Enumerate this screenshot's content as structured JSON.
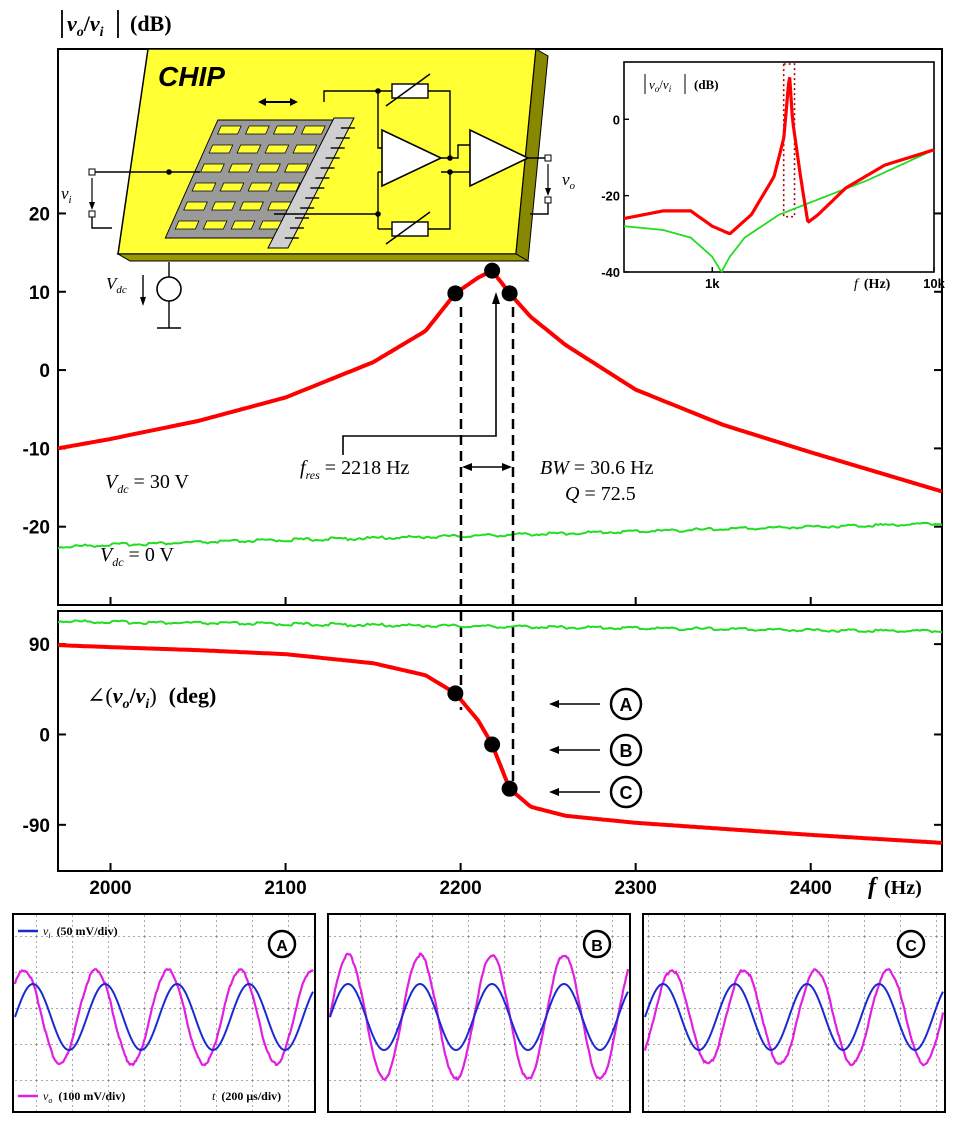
{
  "colors": {
    "driven": "#ff0000",
    "undriven": "#22dd22",
    "vi_trace": "#1a2ad0",
    "vo_trace": "#e020e0",
    "chip": "#ffff33",
    "text": "#000000"
  },
  "main": {
    "magnitude_label": {
      "v1": "v",
      "s1": "o",
      "slash": "/",
      "v2": "v",
      "s2": "i",
      "unit": "(dB)"
    },
    "phase_label": {
      "prefix": "∠(",
      "v1": "v",
      "s1": "o",
      "slash": "/",
      "v2": "v",
      "s2": "i",
      "close": ")",
      "unit": "(deg)"
    },
    "x_axis_label": {
      "f": "f",
      "unit": "(Hz)"
    },
    "vdc30": {
      "v": "V",
      "sub": "dc",
      "val": " = 30 V"
    },
    "vdc0": {
      "v": "V",
      "sub": "dc",
      "val": " = 0 V"
    },
    "fres": {
      "f": "f",
      "sub": "res",
      "val": " = 2218 Hz"
    },
    "bw": {
      "name": "BW",
      "val": " = 30.6 Hz"
    },
    "q": {
      "name": "Q",
      "val": " = 72.5"
    },
    "markers": [
      "A",
      "B",
      "C"
    ]
  },
  "chip": {
    "title": "CHIP",
    "vi": "v",
    "vi_sub": "i",
    "vo": "v",
    "vo_sub": "o",
    "vdc": "V",
    "vdc_sub": "dc"
  },
  "inset": {
    "label": {
      "v1": "v",
      "s1": "o",
      "slash": "/",
      "v2": "v",
      "s2": "i",
      "unit": "(dB)"
    },
    "x_axis_label": {
      "f": "f",
      "unit": "(Hz)"
    }
  },
  "scopes": {
    "vi_legend": {
      "v": "v",
      "sub": "i",
      "scale": "(50 mV/div)"
    },
    "vo_legend": {
      "v": "v",
      "sub": "o",
      "scale": "(100 mV/div)"
    },
    "time_legend": {
      "t": "t",
      "scale": "(200 μs/div)"
    },
    "labels": [
      "A",
      "B",
      "C"
    ]
  },
  "chart_data": [
    {
      "type": "line",
      "title": "",
      "ylabel": "|vo/vi| (dB)",
      "xlabel": "f (Hz)",
      "xlim": [
        1970,
        2475
      ],
      "ylim": [
        -30,
        41
      ],
      "yticks": [
        20,
        10,
        0,
        -10,
        -20
      ],
      "xticks": [
        2000,
        2100,
        2200,
        2300,
        2400
      ],
      "fres": 2218,
      "bandwidth": 30.6,
      "Q": 72.5,
      "series": [
        {
          "name": "Vdc = 30 V",
          "x": [
            1970,
            2000,
            2050,
            2100,
            2150,
            2180,
            2197,
            2210,
            2218,
            2228,
            2240,
            2260,
            2300,
            2350,
            2400,
            2475
          ],
          "y": [
            -10.0,
            -8.8,
            -6.5,
            -3.5,
            1.0,
            5.0,
            9.8,
            11.8,
            12.7,
            9.8,
            6.8,
            3.2,
            -2.5,
            -7.0,
            -10.5,
            -15.5
          ]
        },
        {
          "name": "Vdc = 0 V",
          "x": [
            1970,
            2000,
            2100,
            2200,
            2300,
            2400,
            2475
          ],
          "y": [
            -22.6,
            -22.3,
            -21.7,
            -21.2,
            -20.6,
            -20.0,
            -19.6
          ]
        }
      ],
      "points": [
        {
          "x": 2197,
          "y": 9.8
        },
        {
          "x": 2218,
          "y": 12.7
        },
        {
          "x": 2228,
          "y": 9.8
        }
      ]
    },
    {
      "type": "line",
      "ylabel": "∠(vo/vi) (deg)",
      "xlabel": "f (Hz)",
      "xlim": [
        1970,
        2475
      ],
      "ylim": [
        -136,
        123
      ],
      "yticks": [
        90,
        0,
        -90
      ],
      "xticks": [
        2000,
        2100,
        2200,
        2300,
        2400
      ],
      "series": [
        {
          "name": "Vdc = 30 V",
          "x": [
            1970,
            2000,
            2050,
            2100,
            2150,
            2180,
            2197,
            2210,
            2218,
            2228,
            2240,
            2260,
            2300,
            2350,
            2400,
            2475
          ],
          "y": [
            89.0,
            87.0,
            84.0,
            80.0,
            71.0,
            59.0,
            41.0,
            14.0,
            -10.0,
            -54.0,
            -72.0,
            -81.0,
            -88.0,
            -94.0,
            -100.0,
            -108.0
          ]
        },
        {
          "name": "Vdc = 0 V",
          "x": [
            1970,
            2000,
            2100,
            2200,
            2300,
            2400,
            2475
          ],
          "y": [
            113.0,
            112.0,
            110.0,
            108.0,
            106.0,
            104.0,
            103.0
          ]
        }
      ],
      "points": [
        {
          "x": 2197,
          "y": 41.0,
          "label": "A"
        },
        {
          "x": 2218,
          "y": -10.0,
          "label": "B"
        },
        {
          "x": 2228,
          "y": -54.0,
          "label": "C"
        }
      ]
    },
    {
      "type": "line",
      "ylabel": "|vo/vi| (dB)",
      "xlabel": "f (Hz)",
      "xscale": "log",
      "xlim": [
        400,
        10000
      ],
      "ylim": [
        -40,
        15
      ],
      "yticks": [
        0,
        -20,
        -40
      ],
      "xticks": [
        1000,
        10000
      ],
      "xticklabels": [
        "1k",
        "10k"
      ],
      "series": [
        {
          "name": "Vdc = 30 V",
          "x": [
            400,
            600,
            800,
            1000,
            1200,
            1500,
            1900,
            2100,
            2200,
            2230,
            2300,
            2500,
            2700,
            3000,
            4000,
            6000,
            10000
          ],
          "y": [
            -26,
            -24,
            -24,
            -28,
            -30,
            -25,
            -15,
            -5,
            8,
            12,
            0,
            -15,
            -27,
            -25,
            -18,
            -12,
            -8
          ]
        },
        {
          "name": "Vdc = 0 V",
          "x": [
            400,
            600,
            800,
            1000,
            1100,
            1200,
            1400,
            2000,
            3000,
            5000,
            10000
          ],
          "y": [
            -28,
            -29,
            -31,
            -36,
            -40,
            -36,
            -31,
            -25,
            -21,
            -16,
            -8
          ]
        }
      ],
      "highlight_range_x": [
        2100,
        2350
      ]
    }
  ]
}
